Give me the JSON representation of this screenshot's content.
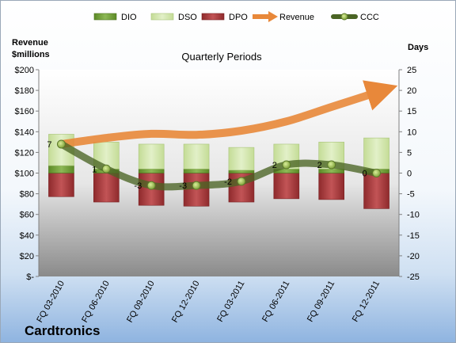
{
  "chart_data": {
    "type": "bar",
    "subtitle": "Quarterly Periods",
    "company": "Cardtronics",
    "left_axis": {
      "title_line1": "Revenue",
      "title_line2": "$millions",
      "range": [
        0,
        200
      ],
      "ticks": [
        0,
        20,
        40,
        60,
        80,
        100,
        120,
        140,
        160,
        180,
        200
      ],
      "tick_labels": [
        "$-",
        "$20",
        "$40",
        "$60",
        "$80",
        "$100",
        "$120",
        "$140",
        "$160",
        "$180",
        "$200"
      ]
    },
    "right_axis": {
      "title": "Days",
      "range": [
        -25,
        25
      ],
      "ticks": [
        -25,
        -20,
        -15,
        -10,
        -5,
        0,
        5,
        10,
        15,
        20,
        25
      ],
      "tick_labels": [
        "-25",
        "-20",
        "-15",
        "-10",
        "-5",
        "0",
        "5",
        "10",
        "15",
        "20",
        "25"
      ]
    },
    "categories": [
      "FQ 03-2010",
      "FQ 06-2010",
      "FQ 09-2010",
      "FQ 12-2010",
      "FQ 03-2011",
      "FQ 06-2011",
      "FQ 09-2011",
      "FQ 12-2011"
    ],
    "series": [
      {
        "name": "DIO",
        "type": "bar",
        "color": "#6f9a35",
        "values": [
          1.8,
          1.0,
          1.0,
          1.0,
          0.7,
          1.0,
          1.0,
          1.0
        ]
      },
      {
        "name": "DSO",
        "type": "bar",
        "color": "#cfe4a8",
        "values": [
          7.6,
          6.5,
          6.0,
          6.0,
          5.5,
          6.0,
          6.5,
          7.5
        ]
      },
      {
        "name": "DPO",
        "type": "bar",
        "color": "#a83a3c",
        "values": [
          -5.7,
          -7.0,
          -7.8,
          -8.0,
          -7.0,
          -6.2,
          -6.4,
          -8.6
        ]
      },
      {
        "name": "Revenue",
        "type": "line",
        "color": "#e8883a",
        "values": [
          128,
          134,
          138,
          137,
          141,
          150,
          164,
          178
        ]
      },
      {
        "name": "CCC",
        "type": "line",
        "color": "#4f6a28",
        "values": [
          7,
          1,
          -3,
          -3,
          -2,
          2,
          2,
          0
        ]
      }
    ],
    "ccc_labels": [
      "7",
      "1",
      "-3",
      "-3",
      "-2",
      "2",
      "2",
      "0"
    ],
    "legend_position": "top",
    "grid": false
  }
}
